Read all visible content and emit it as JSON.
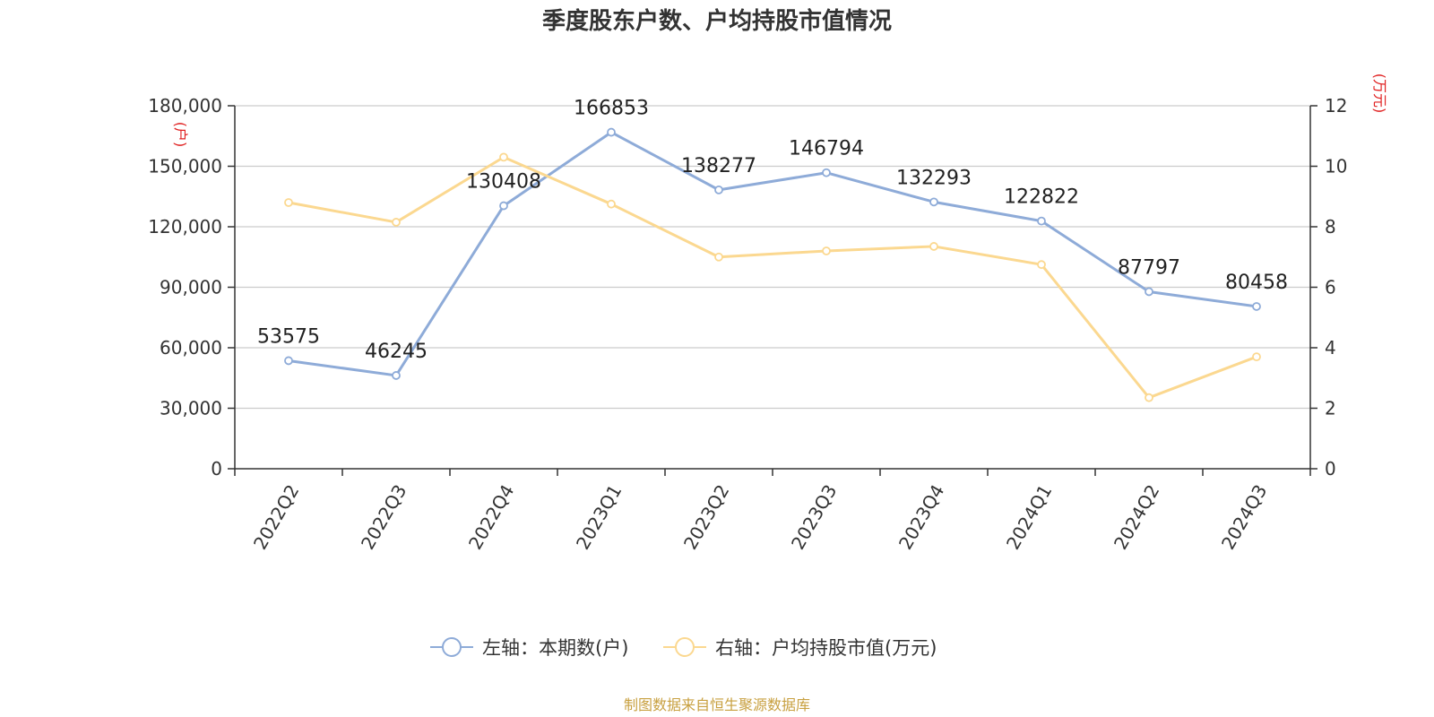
{
  "chart_data": {
    "type": "line",
    "title": "季度股东户数、户均持股市值情况",
    "categories": [
      "2022Q2",
      "2022Q3",
      "2022Q4",
      "2023Q1",
      "2023Q2",
      "2023Q3",
      "2023Q4",
      "2024Q1",
      "2024Q2",
      "2024Q3"
    ],
    "left_axis": {
      "unit": "(户)",
      "ylim": [
        0,
        180000
      ],
      "ticks": [
        0,
        30000,
        60000,
        90000,
        120000,
        150000,
        180000
      ],
      "tick_labels": [
        "0",
        "30,000",
        "60,000",
        "90,000",
        "120,000",
        "150,000",
        "180,000"
      ]
    },
    "right_axis": {
      "unit": "(万元)",
      "ylim": [
        0,
        12
      ],
      "ticks": [
        0,
        2,
        4,
        6,
        8,
        10,
        12
      ],
      "tick_labels": [
        "0",
        "2",
        "4",
        "6",
        "8",
        "10",
        "12"
      ]
    },
    "series": [
      {
        "name": "左轴：本期数(户)",
        "axis": "left",
        "color": "#8eabd8",
        "values": [
          53575,
          46245,
          130408,
          166853,
          138277,
          146794,
          132293,
          122822,
          87797,
          80458
        ],
        "labels": [
          "53575",
          "46245",
          "130408",
          "166853",
          "138277",
          "146794",
          "132293",
          "122822",
          "87797",
          "80458"
        ]
      },
      {
        "name": "右轴：户均持股市值(万元)",
        "axis": "right",
        "color": "#fbd890",
        "values": [
          8.8,
          8.15,
          10.3,
          8.75,
          7.0,
          7.2,
          7.35,
          6.75,
          2.35,
          3.7
        ]
      }
    ],
    "grid": true,
    "legend_position": "bottom-center",
    "source": "制图数据来自恒生聚源数据库"
  }
}
